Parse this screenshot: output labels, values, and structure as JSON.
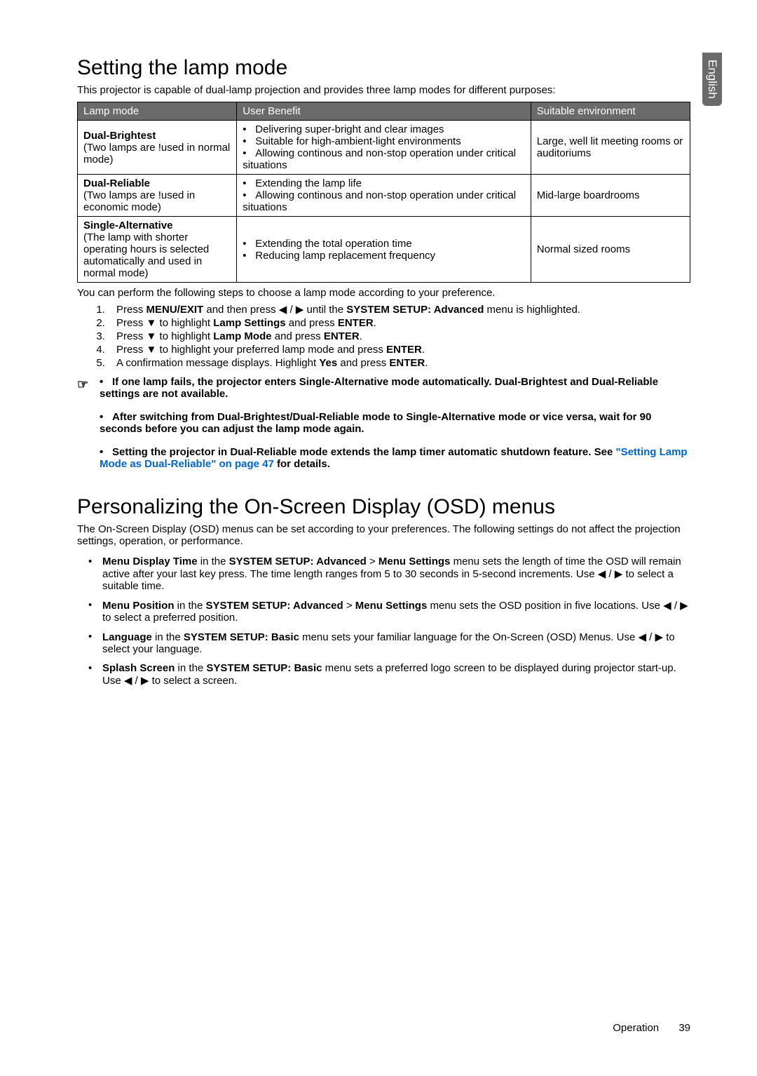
{
  "sideTab": "English",
  "section1": {
    "title": "Setting the lamp mode",
    "intro": "This projector is capable of dual-lamp projection and provides three lamp modes for different purposes:",
    "headers": {
      "c1": "Lamp mode",
      "c2": "User Benefit",
      "c3": "Suitable environment"
    },
    "rows": [
      {
        "modeName": "Dual-Brightest",
        "modeDesc": "(Two lamps are !used in normal mode)",
        "benefits": [
          "Delivering super-bright and clear images",
          "Suitable for high-ambient-light environments",
          "Allowing continous and non-stop operation under critical situations"
        ],
        "env": "Large, well lit meeting rooms or auditoriums"
      },
      {
        "modeName": "Dual-Reliable",
        "modeDesc": "(Two lamps are !used in economic mode)",
        "benefits": [
          "Extending the lamp life",
          "Allowing continous and non-stop operation under critical situations"
        ],
        "env": "Mid-large boardrooms"
      },
      {
        "modeName": "Single-Alternative",
        "modeDesc": "(The lamp with shorter operating hours is selected automatically and used in normal mode)",
        "benefits": [
          "Extending the total operation time",
          "Reducing lamp replacement frequency"
        ],
        "env": "Normal sized rooms"
      }
    ],
    "afterTable": "You can perform the following steps to choose a lamp mode according to your preference.",
    "steps": [
      {
        "pre": "Press ",
        "b1": "MENU/EXIT",
        "mid1": " and then press ◀ / ▶ until the ",
        "b2": "SYSTEM SETUP: Advanced",
        "post": " menu is highlighted."
      },
      {
        "pre": "Press ▼ to highlight ",
        "b1": "Lamp Settings",
        "mid1": " and press ",
        "b2": "ENTER",
        "post": "."
      },
      {
        "pre": "Press ▼ to highlight ",
        "b1": "Lamp Mode",
        "mid1": " and press ",
        "b2": "ENTER",
        "post": "."
      },
      {
        "pre": "Press ▼ to highlight your preferred lamp mode and press ",
        "b1": "ENTER",
        "post": "."
      },
      {
        "pre": "A confirmation message displays. Highlight ",
        "b1": "Yes",
        "mid1": " and press ",
        "b2": "ENTER",
        "post": "."
      }
    ],
    "noteIcon": "☞",
    "notes": [
      {
        "text": "If one lamp fails, the projector enters Single-Alternative mode automatically. Dual-Brightest and Dual-Reliable settings are not available."
      },
      {
        "text": "After switching from Dual-Brightest/Dual-Reliable mode to Single-Alternative mode or vice versa, wait for 90 seconds before you can adjust the lamp mode again."
      },
      {
        "text": "Setting the projector in Dual-Reliable mode extends the lamp timer automatic shutdown feature. See ",
        "link": "\"Setting Lamp Mode as Dual-Reliable\" on page 47",
        "after": " for details."
      }
    ]
  },
  "section2": {
    "title": "Personalizing the On-Screen Display (OSD) menus",
    "intro": "The On-Screen Display (OSD) menus can be set according to your preferences. The following settings do not affect the projection settings, operation, or performance.",
    "items": [
      {
        "b1": "Menu Display Time",
        "t1": " in the ",
        "b2": "SYSTEM SETUP: Advanced",
        "t2": " > ",
        "b3": "Menu Settings",
        "t3": " menu sets the length of time the OSD will remain active after your last key press. The time length ranges from 5 to 30 seconds in 5-second increments. Use ◀ / ▶ to select a suitable time."
      },
      {
        "b1": "Menu Position",
        "t1": " in the ",
        "b2": "SYSTEM SETUP: Advanced",
        "t2": " > ",
        "b3": "Menu Settings",
        "t3": " menu sets the OSD position in five locations. Use ◀ / ▶ to select a preferred position."
      },
      {
        "b1": "Language",
        "t1": " in the ",
        "b2": "SYSTEM SETUP: Basic",
        "t3": " menu sets your familiar language for the On-Screen (OSD) Menus. Use ◀ / ▶ to select your language."
      },
      {
        "b1": "Splash Screen",
        "t1": " in the ",
        "b2": "SYSTEM SETUP: Basic",
        "t3": " menu sets a preferred logo screen to be displayed during projector start-up. Use ◀ / ▶ to select a screen."
      }
    ]
  },
  "footer": {
    "label": "Operation",
    "page": "39"
  }
}
